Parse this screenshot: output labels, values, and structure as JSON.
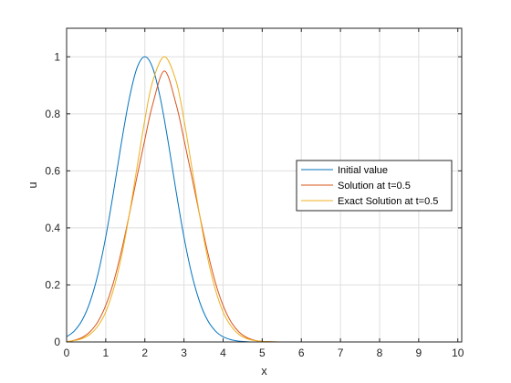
{
  "chart_data": {
    "type": "line",
    "title": "",
    "xlabel": "x",
    "ylabel": "u",
    "xlim": [
      0,
      10.1
    ],
    "ylim": [
      0,
      1.1
    ],
    "xticks": [
      "0",
      "1",
      "2",
      "3",
      "4",
      "5",
      "6",
      "7",
      "8",
      "9",
      "10"
    ],
    "yticks": [
      "0",
      "0.2",
      "0.4",
      "0.6",
      "0.8",
      "1"
    ],
    "grid": true,
    "legend_position": "right",
    "series": [
      {
        "name": "Initial value",
        "color": "#0072BD",
        "x": [
          0,
          0.2,
          0.4,
          0.6,
          0.8,
          1.0,
          1.2,
          1.4,
          1.6,
          1.8,
          2.0,
          2.2,
          2.4,
          2.6,
          2.8,
          3.0,
          3.2,
          3.4,
          3.6,
          3.8,
          4.0,
          4.2,
          4.4,
          4.6,
          4.8,
          5.0,
          5.5,
          6,
          7,
          8,
          9,
          10.1
        ],
        "y": [
          0.018,
          0.039,
          0.077,
          0.141,
          0.237,
          0.368,
          0.527,
          0.698,
          0.852,
          0.961,
          1.0,
          0.961,
          0.852,
          0.698,
          0.527,
          0.368,
          0.237,
          0.141,
          0.077,
          0.039,
          0.018,
          0.008,
          0.003,
          0.001,
          0.0,
          0.0,
          0.0,
          0.0,
          0.0,
          0.0,
          0.0,
          0.0
        ]
      },
      {
        "name": "Solution at t=0.5",
        "color": "#D95319",
        "x": [
          0,
          0.2,
          0.4,
          0.6,
          0.8,
          1.0,
          1.2,
          1.4,
          1.6,
          1.8,
          2.0,
          2.2,
          2.5,
          2.8,
          3.0,
          3.2,
          3.4,
          3.6,
          3.8,
          4.0,
          4.2,
          4.4,
          4.6,
          4.8,
          5.0,
          5.5,
          6,
          7,
          8,
          9,
          10.1
        ],
        "y": [
          0.0,
          0.006,
          0.016,
          0.036,
          0.071,
          0.128,
          0.21,
          0.318,
          0.445,
          0.58,
          0.71,
          0.833,
          0.95,
          0.833,
          0.71,
          0.58,
          0.445,
          0.318,
          0.21,
          0.128,
          0.071,
          0.036,
          0.016,
          0.006,
          0.002,
          0.0,
          0.0,
          0.0,
          0.0,
          0.0,
          0.0
        ]
      },
      {
        "name": "Exact Solution at t=0.5",
        "color": "#EDB120",
        "x": [
          0,
          0.2,
          0.4,
          0.6,
          0.8,
          1.0,
          1.2,
          1.4,
          1.6,
          1.8,
          2.0,
          2.2,
          2.5,
          2.8,
          3.0,
          3.2,
          3.4,
          3.6,
          3.8,
          4.0,
          4.2,
          4.4,
          4.6,
          4.8,
          5.0,
          5.5,
          6,
          7,
          8,
          9,
          10.1
        ],
        "y": [
          0.002,
          0.005,
          0.012,
          0.027,
          0.056,
          0.105,
          0.185,
          0.298,
          0.445,
          0.613,
          0.779,
          0.914,
          1.0,
          0.914,
          0.779,
          0.613,
          0.445,
          0.298,
          0.185,
          0.105,
          0.056,
          0.027,
          0.012,
          0.005,
          0.002,
          0.0,
          0.0,
          0.0,
          0.0,
          0.0,
          0.0
        ]
      }
    ]
  }
}
